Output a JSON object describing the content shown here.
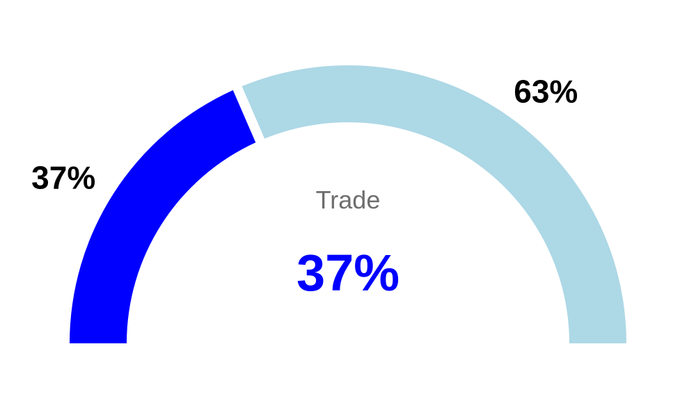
{
  "chart_data": {
    "type": "pie",
    "subtype": "semi-donut gauge",
    "series": [
      {
        "value": 37,
        "label": "37%",
        "color": "#0000ff"
      },
      {
        "value": 63,
        "label": "63%",
        "color": "#add8e6"
      }
    ],
    "center_label": "Trade",
    "center_value": "37%",
    "center_value_color": "#0000ff"
  }
}
